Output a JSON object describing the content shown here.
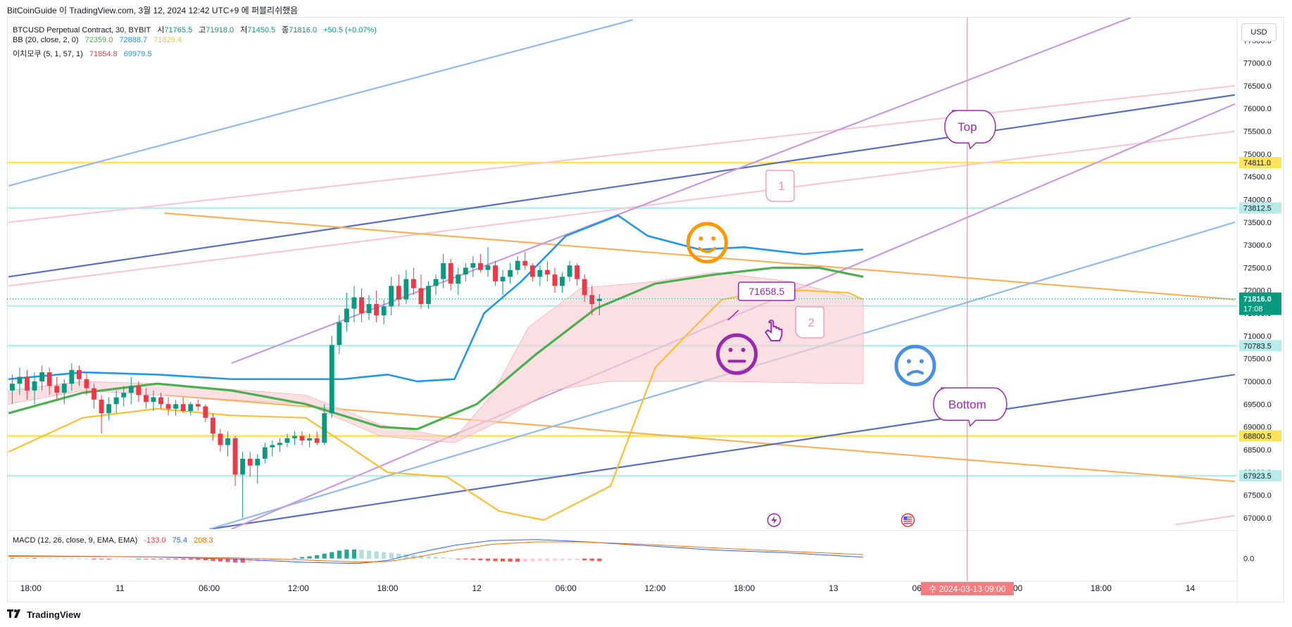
{
  "header": {
    "caption": "BitCoinGuide 이 TradingView.com, 3월 12, 2024 12:42 UTC+9 에 퍼블리쉬했음"
  },
  "legend": {
    "symbol": "BTCUSD Perpetual Contract, 30, BYBIT",
    "ohlc": [
      {
        "label": "시",
        "value": "71765.5"
      },
      {
        "label": "고",
        "value": "71918.0"
      },
      {
        "label": "저",
        "value": "71450.5"
      },
      {
        "label": "종",
        "value": "71816.0"
      }
    ],
    "change": "+50.5 (+0.07%)",
    "bb": {
      "label": "BB (20, close, 2, 0)",
      "values": [
        "72359.0",
        "72888.7",
        "71829.4"
      ],
      "colors": [
        "#4caf50",
        "#2196f3",
        "#fbc02d"
      ]
    },
    "ichimoku": {
      "label": "이치모쿠 (5, 1, 57, 1)",
      "values": [
        "71854.8",
        "69979.5"
      ],
      "colors": [
        "#f23645",
        "#2196f3"
      ]
    },
    "macd": {
      "label": "MACD (12, 26, close, 9, EMA, EMA)",
      "values": [
        "-133.0",
        "75.4",
        "208.3"
      ],
      "colors": [
        "#f23645",
        "#2962ff",
        "#ff6d00"
      ]
    }
  },
  "unit_button": "USD",
  "brand": "TradingView",
  "colors": {
    "up": "#089981",
    "down": "#f23645",
    "bb_mid": "#4caf50",
    "bb_upper": "#2196f3",
    "bb_lower": "#fbc02d",
    "cloud": "#f8cfd3"
  },
  "chart_data": {
    "type": "candlestick",
    "symbol": "BTCUSD",
    "timeframe": "30",
    "price_axis": {
      "ticks": [
        77500,
        77000,
        76500,
        76000,
        75500,
        75000,
        74500,
        74000,
        73500,
        73000,
        72500,
        72000,
        71500,
        71000,
        70500,
        70000,
        69500,
        69000,
        68500,
        68000,
        67500,
        67000
      ],
      "ylim": [
        66750,
        78000
      ]
    },
    "time_axis": {
      "ticks": [
        {
          "label": "18:00",
          "t": -12
        },
        {
          "label": "11",
          "t": 0
        },
        {
          "label": "06:00",
          "t": 12
        },
        {
          "label": "12:00",
          "t": 24
        },
        {
          "label": "18:00",
          "t": 36
        },
        {
          "label": "12",
          "t": 48
        },
        {
          "label": "06:00",
          "t": 60
        },
        {
          "label": "12:00",
          "t": 72
        },
        {
          "label": "18:00",
          "t": 84
        },
        {
          "label": "13",
          "t": 96
        },
        {
          "label": "06:00",
          "t": 108
        },
        {
          "label": "12:00",
          "t": 120
        },
        {
          "label": "18:00",
          "t": 132
        },
        {
          "label": "14",
          "t": 144
        }
      ],
      "xlim": [
        -15.2,
        150.3
      ],
      "crosshair": {
        "label": "수 2024-03-13   09:00",
        "t": 114
      }
    },
    "candles": [
      [
        69800,
        70150,
        69500,
        69950
      ],
      [
        69950,
        70300,
        69700,
        70100
      ],
      [
        70100,
        70250,
        69600,
        69800
      ],
      [
        69800,
        70200,
        69500,
        70000
      ],
      [
        70000,
        70350,
        69800,
        70200
      ],
      [
        70200,
        70300,
        69700,
        69900
      ],
      [
        69900,
        70100,
        69600,
        69750
      ],
      [
        69750,
        70050,
        69500,
        69950
      ],
      [
        69950,
        70400,
        69800,
        70250
      ],
      [
        70250,
        70350,
        69900,
        70050
      ],
      [
        70050,
        70200,
        69700,
        69850
      ],
      [
        69850,
        69950,
        69400,
        69600
      ],
      [
        69600,
        69700,
        68850,
        69300
      ],
      [
        69300,
        69650,
        69150,
        69500
      ],
      [
        69500,
        69800,
        69300,
        69650
      ],
      [
        69650,
        69900,
        69450,
        69750
      ],
      [
        69750,
        70100,
        69500,
        69900
      ],
      [
        69900,
        70000,
        69550,
        69700
      ],
      [
        69700,
        69850,
        69400,
        69550
      ],
      [
        69550,
        69800,
        69350,
        69650
      ],
      [
        69650,
        69750,
        69400,
        69500
      ],
      [
        69500,
        69650,
        69250,
        69400
      ],
      [
        69400,
        69600,
        69250,
        69500
      ],
      [
        69500,
        69650,
        69300,
        69350
      ],
      [
        69350,
        69550,
        69250,
        69500
      ],
      [
        69500,
        69600,
        69350,
        69450
      ],
      [
        69450,
        69500,
        69100,
        69200
      ],
      [
        69200,
        69300,
        68700,
        68850
      ],
      [
        68850,
        68950,
        68450,
        68600
      ],
      [
        68600,
        68900,
        68350,
        68750
      ],
      [
        68750,
        68800,
        67700,
        67950
      ],
      [
        67950,
        68450,
        67000,
        68300
      ],
      [
        68300,
        68450,
        67900,
        68150
      ],
      [
        68150,
        68400,
        67750,
        68300
      ],
      [
        68300,
        68650,
        68200,
        68550
      ],
      [
        68550,
        68700,
        68350,
        68600
      ],
      [
        68600,
        68750,
        68450,
        68650
      ],
      [
        68650,
        68850,
        68550,
        68750
      ],
      [
        68750,
        68900,
        68600,
        68800
      ],
      [
        68800,
        68900,
        68600,
        68700
      ],
      [
        68700,
        68850,
        68550,
        68750
      ],
      [
        68750,
        68900,
        68600,
        68650
      ],
      [
        68650,
        69500,
        68600,
        69300
      ],
      [
        69300,
        71000,
        69200,
        70800
      ],
      [
        70800,
        71450,
        70600,
        71300
      ],
      [
        71300,
        71950,
        71100,
        71600
      ],
      [
        71600,
        72100,
        71300,
        71850
      ],
      [
        71850,
        72050,
        71300,
        71500
      ],
      [
        71500,
        71900,
        71350,
        71700
      ],
      [
        71700,
        72000,
        71300,
        71450
      ],
      [
        71450,
        71800,
        71250,
        71650
      ],
      [
        71650,
        72300,
        71450,
        72100
      ],
      [
        72100,
        72350,
        71650,
        71800
      ],
      [
        71800,
        72450,
        71700,
        72250
      ],
      [
        72250,
        72500,
        71900,
        72050
      ],
      [
        72050,
        72350,
        71600,
        71700
      ],
      [
        71700,
        72200,
        71600,
        72100
      ],
      [
        72100,
        72350,
        71900,
        72250
      ],
      [
        72250,
        72800,
        72050,
        72600
      ],
      [
        72600,
        72700,
        72000,
        72150
      ],
      [
        72150,
        72500,
        71900,
        72350
      ],
      [
        72350,
        72600,
        72200,
        72500
      ],
      [
        72500,
        72750,
        72300,
        72600
      ],
      [
        72600,
        72800,
        72400,
        72450
      ],
      [
        72450,
        72950,
        72300,
        72550
      ],
      [
        72550,
        72650,
        72100,
        72200
      ],
      [
        72200,
        72450,
        71900,
        72300
      ],
      [
        72300,
        72600,
        72150,
        72450
      ],
      [
        72450,
        72750,
        72350,
        72650
      ],
      [
        72650,
        72850,
        72450,
        72550
      ],
      [
        72550,
        72600,
        72200,
        72300
      ],
      [
        72300,
        72550,
        72100,
        72450
      ],
      [
        72450,
        72650,
        72200,
        72350
      ],
      [
        72350,
        72500,
        71950,
        72100
      ],
      [
        72100,
        72400,
        71950,
        72300
      ],
      [
        72300,
        72650,
        72200,
        72550
      ],
      [
        72550,
        72600,
        72100,
        72250
      ],
      [
        72250,
        72350,
        71750,
        71900
      ],
      [
        71900,
        72100,
        71450,
        71700
      ],
      [
        71765.5,
        71918,
        71450.5,
        71816
      ]
    ],
    "bb_mid": [
      [
        -15,
        69300
      ],
      [
        -5,
        69750
      ],
      [
        5,
        69950
      ],
      [
        15,
        69800
      ],
      [
        25,
        69500
      ],
      [
        35,
        69000
      ],
      [
        40,
        68950
      ],
      [
        48,
        69500
      ],
      [
        56,
        70600
      ],
      [
        64,
        71600
      ],
      [
        72,
        72150
      ],
      [
        80,
        72350
      ],
      [
        88,
        72500
      ],
      [
        94,
        72500
      ],
      [
        100,
        72300
      ]
    ],
    "bb_upper": [
      [
        -15,
        70050
      ],
      [
        -5,
        70200
      ],
      [
        5,
        70150
      ],
      [
        15,
        70050
      ],
      [
        30,
        70050
      ],
      [
        36,
        70150
      ],
      [
        40,
        70000
      ],
      [
        45,
        70050
      ],
      [
        49,
        71500
      ],
      [
        54,
        72200
      ],
      [
        60,
        73200
      ],
      [
        67,
        73650
      ],
      [
        71,
        73200
      ],
      [
        78,
        72900
      ],
      [
        84,
        72950
      ],
      [
        92,
        72800
      ],
      [
        100,
        72900
      ]
    ],
    "bb_lower": [
      [
        -15,
        68450
      ],
      [
        -5,
        69200
      ],
      [
        5,
        69400
      ],
      [
        15,
        69250
      ],
      [
        25,
        69200
      ],
      [
        31,
        68550
      ],
      [
        36,
        68000
      ],
      [
        44,
        67900
      ],
      [
        51,
        67150
      ],
      [
        57,
        66950
      ],
      [
        66,
        67700
      ],
      [
        72,
        70300
      ],
      [
        77,
        71150
      ],
      [
        81,
        71800
      ],
      [
        86,
        71950
      ],
      [
        92,
        72000
      ],
      [
        98,
        71950
      ],
      [
        100,
        71800
      ]
    ],
    "cloud_top": [
      [
        -15,
        69800
      ],
      [
        -5,
        70000
      ],
      [
        5,
        69950
      ],
      [
        25,
        69700
      ],
      [
        35,
        69050
      ],
      [
        45,
        68750
      ],
      [
        50,
        69700
      ],
      [
        55,
        71200
      ],
      [
        62,
        72050
      ],
      [
        72,
        72200
      ],
      [
        80,
        72400
      ],
      [
        90,
        72200
      ],
      [
        100,
        71800
      ]
    ],
    "cloud_bottom": [
      [
        -15,
        69500
      ],
      [
        -5,
        69800
      ],
      [
        5,
        69700
      ],
      [
        25,
        69500
      ],
      [
        35,
        68800
      ],
      [
        45,
        68650
      ],
      [
        52,
        69200
      ],
      [
        58,
        69800
      ],
      [
        66,
        70000
      ],
      [
        80,
        70000
      ],
      [
        100,
        69950
      ]
    ],
    "horizontal_levels": [
      {
        "price": 74811.0,
        "color": "#fbe35a",
        "label": "74811.0"
      },
      {
        "price": 73812.5,
        "color": "#b8ecea",
        "label": "73812.5"
      },
      {
        "price": 71658.5,
        "color": "#b8ecea",
        "label": "71658.5"
      },
      {
        "price": 70783.5,
        "color": "#b8ecea",
        "label": "70783.5"
      },
      {
        "price": 68800.5,
        "color": "#fbe35a",
        "label": "68800.5"
      },
      {
        "price": 67923.5,
        "color": "#b8ecea",
        "label": "67923.5"
      }
    ],
    "last_price": {
      "price": 71816.0,
      "label": "71816.0",
      "countdown": "17:08"
    },
    "trend_lines": [
      {
        "t1": -15,
        "p1": 74300,
        "t2": 69,
        "p2": 77950,
        "color": "#90baf0"
      },
      {
        "t1": -15,
        "p1": 72300,
        "t2": 150,
        "p2": 76300,
        "color": "#5a6fbf"
      },
      {
        "t1": -15,
        "p1": 73500,
        "t2": 150,
        "p2": 76500,
        "color": "#f9c8d6"
      },
      {
        "t1": -15,
        "p1": 72100,
        "t2": 150,
        "p2": 75500,
        "color": "#f9c8d6"
      },
      {
        "t1": 6,
        "p1": 73700,
        "t2": 150,
        "p2": 71800,
        "color": "#f7b25a"
      },
      {
        "t1": 6,
        "p1": 69700,
        "t2": 150,
        "p2": 67800,
        "color": "#f7b25a"
      },
      {
        "t1": 12,
        "p1": 66750,
        "t2": 150,
        "p2": 70150,
        "color": "#5a6fbf"
      },
      {
        "t1": 12,
        "p1": 66750,
        "t2": 150,
        "p2": 73500,
        "color": "#90baf0"
      },
      {
        "t1": 15,
        "p1": 70400,
        "t2": 136,
        "p2": 78000,
        "color": "#c89adf"
      },
      {
        "t1": 15,
        "p1": 66750,
        "t2": 150,
        "p2": 76100,
        "color": "#c89adf"
      },
      {
        "t1": 142,
        "p1": 66850,
        "t2": 150,
        "p2": 67050,
        "color": "#f9c8d6"
      }
    ],
    "annotations": [
      {
        "text": "Top",
        "t": 114,
        "p": 75600,
        "color": "#9c27b0"
      },
      {
        "text": "Bottom",
        "t": 114,
        "p": 69500,
        "color": "#9c27b0"
      },
      {
        "text": "1",
        "t": 89,
        "p": 74300,
        "color": "#f48fb1"
      },
      {
        "text": "2",
        "t": 93,
        "p": 71300,
        "color": "#f48fb1"
      },
      {
        "text": "71658.5",
        "t": 87,
        "p": 72120,
        "color": "#9c27b0"
      }
    ],
    "macd": {
      "label": "MACD (12, 26, close, 9, EMA, EMA)",
      "zero_label": "0.0",
      "histogram": [
        40,
        35,
        30,
        32,
        28,
        20,
        15,
        10,
        8,
        5,
        0,
        -10,
        -15,
        -20,
        -18,
        -10,
        -5,
        0,
        -5,
        -10,
        -20,
        -30,
        -40,
        -50,
        -60,
        -70,
        -90,
        -120,
        -150,
        -180,
        -200,
        -210,
        -190,
        -160,
        -120,
        -80,
        -40,
        -10,
        30,
        80,
        120,
        180,
        260,
        340,
        420,
        470,
        480,
        460,
        420,
        380,
        340,
        300,
        260,
        220,
        180,
        150,
        120,
        90,
        60,
        30,
        -10,
        -40,
        -70,
        -90,
        -110,
        -130,
        -150,
        -160,
        -170,
        -165,
        -150,
        -130,
        -120,
        -110,
        -100,
        -90,
        -85,
        -95,
        -110,
        -133
      ],
      "macd_line": [
        [
          -15,
          150
        ],
        [
          -5,
          120
        ],
        [
          5,
          80
        ],
        [
          15,
          -20
        ],
        [
          25,
          -200
        ],
        [
          32,
          -260
        ],
        [
          36,
          -100
        ],
        [
          40,
          300
        ],
        [
          45,
          700
        ],
        [
          50,
          950
        ],
        [
          56,
          1000
        ],
        [
          62,
          900
        ],
        [
          70,
          700
        ],
        [
          80,
          450
        ],
        [
          90,
          300
        ],
        [
          100,
          75
        ]
      ],
      "signal_line": [
        [
          -15,
          120
        ],
        [
          -5,
          110
        ],
        [
          5,
          90
        ],
        [
          15,
          40
        ],
        [
          25,
          -80
        ],
        [
          32,
          -180
        ],
        [
          36,
          -160
        ],
        [
          40,
          80
        ],
        [
          45,
          450
        ],
        [
          50,
          750
        ],
        [
          56,
          880
        ],
        [
          62,
          880
        ],
        [
          70,
          760
        ],
        [
          80,
          560
        ],
        [
          90,
          380
        ],
        [
          100,
          208
        ]
      ],
      "ylim": [
        -900,
        1400
      ]
    },
    "icons": [
      {
        "name": "happy-face-icon",
        "t": 79,
        "p": 73050,
        "color": "#ff9800"
      },
      {
        "name": "neutral-face-icon",
        "t": 83,
        "p": 70600,
        "color": "#9c27b0"
      },
      {
        "name": "worried-face-icon",
        "t": 107,
        "p": 70350,
        "color": "#4a90e2"
      },
      {
        "name": "pointing-hand-icon",
        "t": 88,
        "p": 71080,
        "color": "#9c27b0"
      },
      {
        "name": "flash-event-icon",
        "t": 88,
        "p": 66950,
        "color": "#9c27b0"
      },
      {
        "name": "us-flag-event-icon",
        "t": 106,
        "p": 66950,
        "color": "#f23645"
      }
    ]
  }
}
